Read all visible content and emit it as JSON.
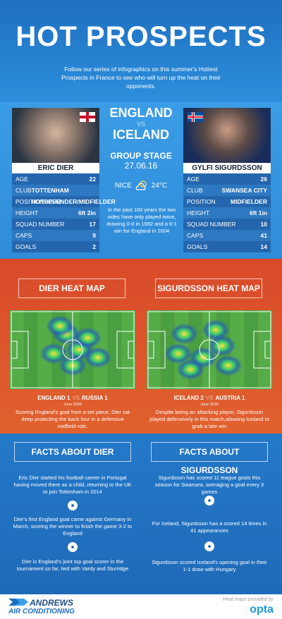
{
  "header": {
    "title": "HOT PROSPECTS",
    "subtitle": "Follow our series of infographics on this summer's Hottest Prospects in France to see who will turn up the heat on their opponents."
  },
  "match": {
    "team1": "ENGLAND",
    "vs": "VS",
    "team2": "ICELAND",
    "stage": "GROUP STAGE",
    "date": "27.06.16",
    "location": "NICE",
    "temperature": "24°C",
    "note": "In the past 100 years the two sides have only played twice, drawing 0-0 in 1982 and a 6-1 win for England in 2004"
  },
  "players": [
    {
      "name": "ERIC DIER",
      "stats": [
        [
          "AGE",
          "22"
        ],
        [
          "CLUB",
          "TOTTENHAM HOTSPUR"
        ],
        [
          "POSITION",
          "DEFENDER/MIDFIELDER"
        ],
        [
          "HEIGHT",
          "6ft 2in"
        ],
        [
          "SQUAD NUMBER",
          "17"
        ],
        [
          "CAPS",
          "9"
        ],
        [
          "GOALS",
          "2"
        ]
      ]
    },
    {
      "name": "GYLFI SIGURDSSON",
      "stats": [
        [
          "AGE",
          "26"
        ],
        [
          "CLUB",
          "SWANSEA CITY"
        ],
        [
          "POSITION",
          "MIDFIELDER"
        ],
        [
          "HEIGHT",
          "6ft 1in"
        ],
        [
          "SQUAD NUMBER",
          "10"
        ],
        [
          "CAPS",
          "41"
        ],
        [
          "GOALS",
          "14"
        ]
      ]
    }
  ],
  "heatmaps": [
    {
      "title": "DIER HEAT MAP",
      "result_home": "ENGLAND 1",
      "result_vs": "VS",
      "result_away": "RUSSIA 1",
      "date": "June 2016",
      "caption": "Scoring England's goal from a set piece, Dier sat deep protecting the back four in a defensive midfield role."
    },
    {
      "title": "SIGURDSSON HEAT MAP",
      "result_home": "ICELAND 2",
      "result_vs": "VS",
      "result_away": "AUSTRIA 1",
      "date": "June 2016",
      "caption": "Despite being an attacking player, Sigurdsson played defensively in this match,allowing Iceland to grab a late win"
    }
  ],
  "facts": [
    {
      "title": "FACTS ABOUT DIER",
      "items": [
        "Eric Dier started his football career in Portugal having moved there as a child, returning to the UK to join Tottenham in 2014",
        "Dier's first England goal came against Germany in March, scoring the winner to finish the game 3-2 to England",
        "Dier is England's joint top goal scorer in the tournament so far, tied with Vardy and Sturridge"
      ]
    },
    {
      "title": "FACTS ABOUT SIGURDSSON",
      "items": [
        "Sigurdsson has scored 11 league goals this season for Swansea, averaging a goal every 3 games",
        "For Iceland, Sigurdsson has a scored 14 times in 41 appearances",
        "Sigurdsson scored Iceland's opening goal in their 1-1 draw with Hungary"
      ]
    }
  ],
  "footer": {
    "brand_top": "ANDREWS",
    "brand_bottom": "AIR CONDITIONING",
    "credit": "Heat maps provided by",
    "provider": "opta"
  }
}
